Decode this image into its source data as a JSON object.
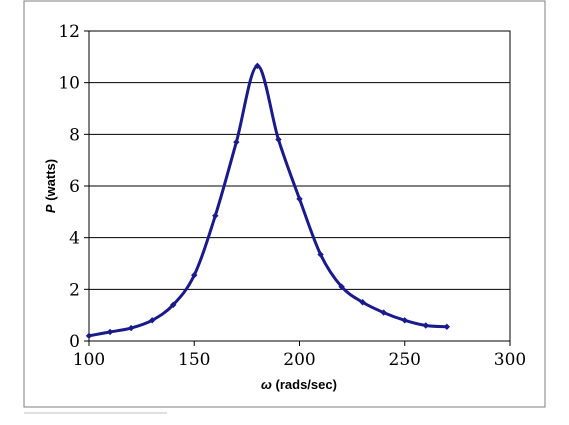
{
  "chart_data": {
    "type": "line",
    "title": "",
    "xlabel": {
      "symbol": "ω",
      "unit": " (rads/sec)"
    },
    "ylabel": {
      "symbol": "P",
      "unit": " (watts)"
    },
    "xlim": [
      100,
      300
    ],
    "ylim": [
      0,
      12
    ],
    "xticks": [
      100,
      150,
      200,
      250,
      300
    ],
    "yticks": [
      0,
      2,
      4,
      6,
      8,
      10,
      12
    ],
    "grid": "horizontal",
    "legend": "none",
    "colors": {
      "line": "#1a1a8c",
      "marker": "#1a1a8c",
      "grid": "#000000",
      "frame": "#7f7f7f"
    },
    "series": [
      {
        "x": [
          100,
          110,
          120,
          130,
          140,
          150,
          160,
          170,
          180,
          190,
          200,
          210,
          220,
          230,
          240,
          250,
          260,
          270
        ],
        "y": [
          0.2,
          0.35,
          0.5,
          0.8,
          1.4,
          2.55,
          4.85,
          7.7,
          10.65,
          7.8,
          5.5,
          3.35,
          2.1,
          1.5,
          1.1,
          0.8,
          0.6,
          0.55
        ]
      }
    ]
  }
}
